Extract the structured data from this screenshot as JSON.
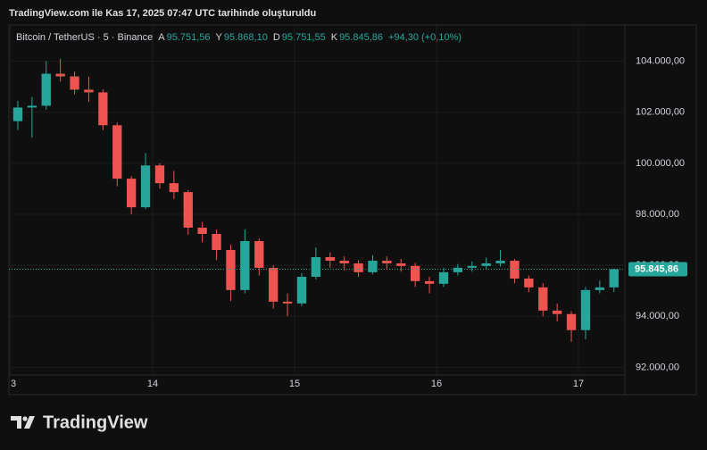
{
  "header": {
    "caption": "TradingView.com ile Kas 17, 2025 07:47 UTC tarihinde oluşturuldu",
    "symbol": "Bitcoin / TetherUS · 5 · Binance",
    "ohlc": [
      {
        "key": "A",
        "value": "95.751,56"
      },
      {
        "key": "Y",
        "value": "95.868,10"
      },
      {
        "key": "D",
        "value": "95.751,55"
      },
      {
        "key": "K",
        "value": "95.845,86"
      }
    ],
    "change": "+94,30 (+0,10%)"
  },
  "chart_data": {
    "type": "candlestick",
    "x": [
      13.05,
      13.15,
      13.25,
      13.35,
      13.45,
      13.55,
      13.65,
      13.75,
      13.85,
      13.95,
      14.05,
      14.15,
      14.25,
      14.35,
      14.45,
      14.55,
      14.65,
      14.75,
      14.85,
      14.95,
      15.05,
      15.15,
      15.25,
      15.35,
      15.45,
      15.55,
      15.65,
      15.75,
      15.85,
      15.95,
      16.05,
      16.15,
      16.25,
      16.35,
      16.45,
      16.55,
      16.65,
      16.75,
      16.85,
      16.95,
      17.05,
      17.15,
      17.25
    ],
    "open": [
      101650,
      102185,
      102255,
      103510,
      103405,
      102885,
      102780,
      101490,
      99395,
      98275,
      99915,
      99220,
      98870,
      97475,
      97230,
      96600,
      95030,
      96950,
      95900,
      94575,
      94505,
      95550,
      96320,
      96180,
      96075,
      95730,
      96180,
      96075,
      95975,
      95380,
      95275,
      95730,
      95905,
      95975,
      96075,
      96180,
      95480,
      95135,
      94225,
      94090,
      93460,
      95030,
      95135
    ],
    "high": [
      102450,
      102600,
      104000,
      104100,
      103600,
      103400,
      102900,
      101600,
      99500,
      100400,
      100000,
      99700,
      98950,
      97700,
      97400,
      96800,
      97400,
      97050,
      96000,
      94900,
      95700,
      96700,
      96500,
      96350,
      96200,
      96400,
      96350,
      96250,
      96100,
      95550,
      95900,
      96050,
      96150,
      96300,
      96600,
      96250,
      95600,
      95300,
      94500,
      94200,
      95150,
      95400,
      95868.1
    ],
    "low": [
      101300,
      101000,
      102100,
      103200,
      102700,
      102400,
      101300,
      99100,
      98000,
      98200,
      99000,
      98600,
      97200,
      96900,
      96200,
      94600,
      94900,
      95600,
      94300,
      94000,
      94400,
      95450,
      95900,
      95800,
      95550,
      95650,
      95850,
      95750,
      95150,
      94900,
      95150,
      95600,
      95750,
      95850,
      95950,
      95300,
      94950,
      94000,
      93800,
      93000,
      93100,
      94900,
      94950
    ],
    "close": [
      102185,
      102255,
      103510,
      103405,
      102885,
      102780,
      101490,
      99395,
      98275,
      99915,
      99220,
      98870,
      97475,
      97230,
      96600,
      95030,
      96950,
      95900,
      94575,
      94505,
      95550,
      96320,
      96180,
      96075,
      95730,
      96180,
      96075,
      95975,
      95380,
      95275,
      95730,
      95905,
      95975,
      96075,
      96180,
      95480,
      95135,
      94225,
      94090,
      93460,
      95030,
      95135,
      95845.86
    ],
    "up_color": "#26a69a",
    "down_color": "#ef5350",
    "last_price_label": "95.845,86",
    "xlim": [
      13,
      17.327
    ],
    "xticks": [
      {
        "value": 13,
        "label": "3"
      },
      14,
      15,
      16,
      17
    ],
    "ylim": [
      91000,
      105000
    ],
    "yticks": [
      {
        "value": 92000,
        "label": "92.000,00"
      },
      {
        "value": 94000,
        "label": "94.000,00"
      },
      {
        "value": 96000,
        "label": "96.000,00"
      },
      {
        "value": 98000,
        "label": "98.000,00"
      },
      {
        "value": 100000,
        "label": "100.000,00"
      },
      {
        "value": 102000,
        "label": "102.000,00"
      },
      {
        "value": 104000,
        "label": "104.000,00"
      }
    ],
    "grid": true
  },
  "footer": {
    "brand": "TradingView"
  }
}
